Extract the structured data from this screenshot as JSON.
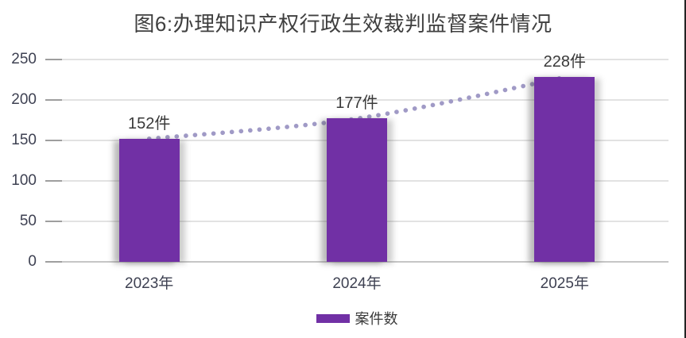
{
  "window": {
    "background": "#FFFFFF",
    "right_border_color": "#242424"
  },
  "chart_data": {
    "type": "bar",
    "title": "图6:办理知识产权行政生效裁判监督案件情况",
    "categories": [
      "2023年",
      "2024年",
      "2025年"
    ],
    "series": [
      {
        "name": "案件数",
        "values": [
          152,
          177,
          228
        ],
        "color": "#7130A5"
      }
    ],
    "data_labels": [
      "152件",
      "177件",
      "228件"
    ],
    "trend_line": {
      "style": "dotted",
      "smooth": true,
      "color": "#A09AC6",
      "through_values": [
        152,
        177,
        228
      ]
    },
    "xlabel": "",
    "ylabel": "",
    "ylim": [
      0,
      250
    ],
    "ytick_interval": 50,
    "ytick_labels_top_down": [
      "250",
      "200",
      "150",
      "100",
      "50",
      "0"
    ],
    "grid": true,
    "legend": {
      "position": "bottom",
      "entries": [
        {
          "label": "案件数",
          "color": "#7130A5"
        }
      ]
    },
    "colors": {
      "title_text": "#3F3F3F",
      "axis_text": "#3E4152",
      "data_label_text": "#3A3A3A",
      "grid_line": "#E2E2E2",
      "axis_line": "#C6C6C6",
      "tick_mark": "#9E9E9E"
    }
  }
}
